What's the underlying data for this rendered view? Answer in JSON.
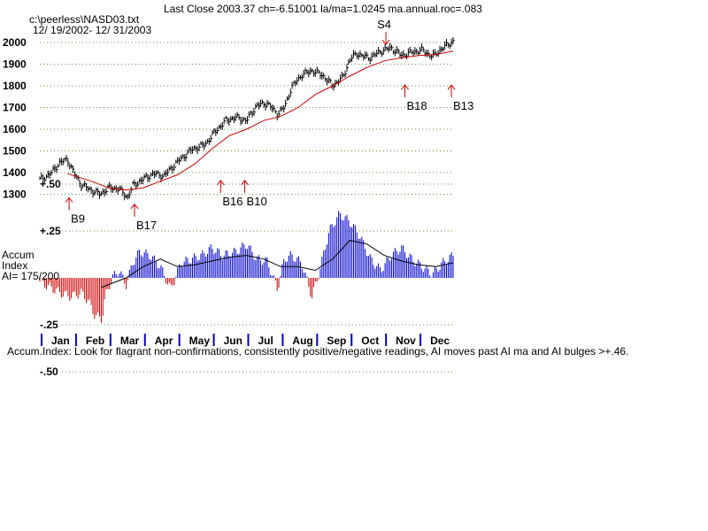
{
  "header": {
    "title": "Last Close 2003.37 ch=-6.51001  la/ma=1.0245 ma.annual.roc=.083",
    "file": "c:\\peerless\\NASD03.txt",
    "date_range": "12/ 19/2002- 12/ 31/2003"
  },
  "accum_label": {
    "line1": "Accum",
    "line2": "Index",
    "line3": "AI= 175/200"
  },
  "footer_note": "Accum.Index: Look for flagrant non-confirmations, consistently positive/negative readings, AI moves past AI ma and AI bulges >+.46.",
  "colors": {
    "price": "#000000",
    "moving_average": "#cc0000",
    "grid": "#5a9a3a",
    "signal": "#cc0000",
    "ai_positive": "#0000cc",
    "ai_negative": "#cc0000",
    "axis": "#0000cc"
  },
  "chart_data": [
    {
      "type": "line",
      "name": "price",
      "y_ticks": [
        "2000",
        "1900",
        "1800",
        "1700",
        "1600",
        "1500",
        "1400",
        "1300"
      ],
      "ylim": [
        1270,
        2010
      ],
      "points": [
        [
          0,
          1368
        ],
        [
          0.3,
          1392
        ],
        [
          0.55,
          1442
        ],
        [
          0.8,
          1462
        ],
        [
          1.0,
          1395
        ],
        [
          1.2,
          1345
        ],
        [
          1.5,
          1318
        ],
        [
          1.75,
          1300
        ],
        [
          2.0,
          1330
        ],
        [
          2.3,
          1325
        ],
        [
          2.55,
          1285
        ],
        [
          2.7,
          1340
        ],
        [
          3.0,
          1370
        ],
        [
          3.3,
          1395
        ],
        [
          3.6,
          1385
        ],
        [
          4.0,
          1450
        ],
        [
          4.4,
          1505
        ],
        [
          4.8,
          1530
        ],
        [
          5.1,
          1590
        ],
        [
          5.4,
          1640
        ],
        [
          5.7,
          1655
        ],
        [
          6.0,
          1640
        ],
        [
          6.3,
          1710
        ],
        [
          6.6,
          1720
        ],
        [
          6.9,
          1670
        ],
        [
          7.1,
          1700
        ],
        [
          7.3,
          1790
        ],
        [
          7.6,
          1850
        ],
        [
          7.9,
          1870
        ],
        [
          8.2,
          1850
        ],
        [
          8.5,
          1800
        ],
        [
          8.8,
          1840
        ],
        [
          9.0,
          1920
        ],
        [
          9.2,
          1950
        ],
        [
          9.4,
          1935
        ],
        [
          9.6,
          1930
        ],
        [
          9.9,
          1960
        ],
        [
          10.2,
          1975
        ],
        [
          10.5,
          1940
        ],
        [
          10.8,
          1955
        ],
        [
          11.1,
          1965
        ],
        [
          11.4,
          1935
        ],
        [
          11.7,
          1975
        ],
        [
          12.0,
          2005
        ]
      ],
      "moving_average": [
        [
          0.8,
          1395
        ],
        [
          1.5,
          1360
        ],
        [
          2.0,
          1330
        ],
        [
          2.5,
          1320
        ],
        [
          3.0,
          1330
        ],
        [
          3.5,
          1360
        ],
        [
          4.0,
          1390
        ],
        [
          4.5,
          1440
        ],
        [
          5.0,
          1510
        ],
        [
          5.5,
          1570
        ],
        [
          6.0,
          1600
        ],
        [
          6.5,
          1640
        ],
        [
          7.0,
          1660
        ],
        [
          7.5,
          1700
        ],
        [
          8.0,
          1760
        ],
        [
          8.5,
          1800
        ],
        [
          9.0,
          1845
        ],
        [
          9.5,
          1885
        ],
        [
          10.0,
          1915
        ],
        [
          10.5,
          1930
        ],
        [
          11.0,
          1940
        ],
        [
          11.5,
          1945
        ],
        [
          12.0,
          1960
        ]
      ],
      "signals": [
        {
          "label": "B9",
          "x": 0.85,
          "kind": "buy",
          "price": 1300
        },
        {
          "label": "B17",
          "x": 2.75,
          "kind": "buy",
          "price": 1270
        },
        {
          "label": "B16",
          "x": 5.25,
          "kind": "buy",
          "price": 1380
        },
        {
          "label": "B10",
          "x": 5.95,
          "kind": "buy",
          "price": 1380
        },
        {
          "label": "S4",
          "x": 10.05,
          "kind": "sell",
          "price": 1975
        },
        {
          "label": "B18",
          "x": 10.6,
          "kind": "buy",
          "price": 1820
        },
        {
          "label": "B13",
          "x": 11.95,
          "kind": "buy",
          "price": 1820
        }
      ]
    },
    {
      "type": "bar",
      "name": "accumulation-index",
      "y_ticks": [
        "+.50",
        "+.25",
        "-.25",
        "-.50"
      ],
      "ylim": [
        -0.55,
        0.55
      ],
      "values": [
        [
          0,
          -0.02
        ],
        [
          0.3,
          -0.05
        ],
        [
          0.6,
          -0.08
        ],
        [
          0.9,
          -0.1
        ],
        [
          1.2,
          -0.08
        ],
        [
          1.4,
          -0.12
        ],
        [
          1.6,
          -0.2
        ],
        [
          1.8,
          -0.22
        ],
        [
          1.9,
          -0.1
        ],
        [
          2.1,
          0.0
        ],
        [
          2.3,
          0.04
        ],
        [
          2.5,
          -0.04
        ],
        [
          2.7,
          0.08
        ],
        [
          2.9,
          0.14
        ],
        [
          3.2,
          0.12
        ],
        [
          3.5,
          0.06
        ],
        [
          3.8,
          -0.06
        ],
        [
          4.1,
          0.08
        ],
        [
          4.4,
          0.1
        ],
        [
          4.7,
          0.12
        ],
        [
          5.0,
          0.16
        ],
        [
          5.3,
          0.12
        ],
        [
          5.7,
          0.14
        ],
        [
          6.0,
          0.18
        ],
        [
          6.3,
          0.1
        ],
        [
          6.6,
          0.09
        ],
        [
          6.9,
          -0.06
        ],
        [
          7.1,
          0.1
        ],
        [
          7.3,
          0.12
        ],
        [
          7.6,
          0.08
        ],
        [
          7.9,
          -0.1
        ],
        [
          8.1,
          0.02
        ],
        [
          8.4,
          0.25
        ],
        [
          8.7,
          0.34
        ],
        [
          9.0,
          0.3
        ],
        [
          9.3,
          0.22
        ],
        [
          9.6,
          0.1
        ],
        [
          9.9,
          0.04
        ],
        [
          10.2,
          0.12
        ],
        [
          10.5,
          0.16
        ],
        [
          10.8,
          0.1
        ],
        [
          11.1,
          0.06
        ],
        [
          11.4,
          0.02
        ],
        [
          11.7,
          0.08
        ],
        [
          12.0,
          0.12
        ]
      ],
      "moving_average": [
        [
          1.8,
          -0.05
        ],
        [
          2.5,
          0.0
        ],
        [
          3.0,
          0.06
        ],
        [
          3.5,
          0.1
        ],
        [
          4.0,
          0.06
        ],
        [
          4.5,
          0.07
        ],
        [
          5.0,
          0.09
        ],
        [
          5.5,
          0.11
        ],
        [
          6.0,
          0.12
        ],
        [
          6.5,
          0.1
        ],
        [
          7.0,
          0.06
        ],
        [
          7.5,
          0.06
        ],
        [
          8.0,
          0.04
        ],
        [
          8.5,
          0.1
        ],
        [
          9.0,
          0.2
        ],
        [
          9.5,
          0.18
        ],
        [
          10.0,
          0.12
        ],
        [
          10.5,
          0.09
        ],
        [
          11.0,
          0.07
        ],
        [
          11.5,
          0.06
        ],
        [
          12.0,
          0.08
        ]
      ]
    }
  ],
  "months": [
    "Jan",
    "Feb",
    "Mar",
    "Apr",
    "May",
    "Jun",
    "Jul",
    "Aug",
    "Sep",
    "Oct",
    "Nov",
    "Dec"
  ]
}
